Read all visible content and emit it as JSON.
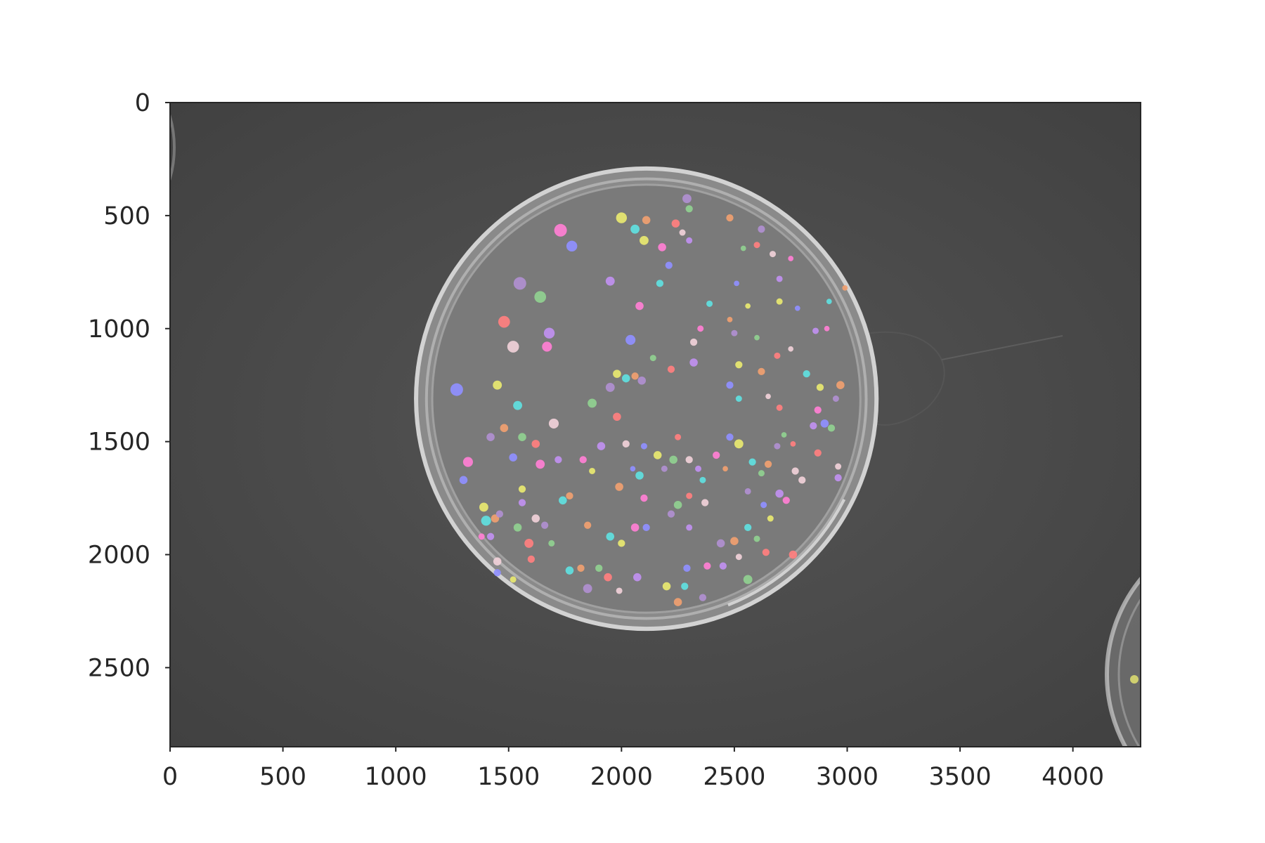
{
  "chart_data": {
    "type": "image",
    "xlim": [
      0,
      4300
    ],
    "ylim": [
      2850,
      0
    ],
    "x_ticks": [
      {
        "value": 0,
        "label": "0"
      },
      {
        "value": 500,
        "label": "500"
      },
      {
        "value": 1000,
        "label": "1000"
      },
      {
        "value": 1500,
        "label": "1500"
      },
      {
        "value": 2000,
        "label": "2000"
      },
      {
        "value": 2500,
        "label": "2500"
      },
      {
        "value": 3000,
        "label": "3000"
      },
      {
        "value": 3500,
        "label": "3500"
      },
      {
        "value": 4000,
        "label": "4000"
      }
    ],
    "y_ticks": [
      {
        "value": 0,
        "label": "0"
      },
      {
        "value": 500,
        "label": "500"
      },
      {
        "value": 1000,
        "label": "1000"
      },
      {
        "value": 1500,
        "label": "1500"
      },
      {
        "value": 2000,
        "label": "2000"
      },
      {
        "value": 2500,
        "label": "2500"
      }
    ],
    "grid": false,
    "background_color": "#4a4a4a",
    "dish": {
      "cx": 2110,
      "cy": 1310,
      "r": 1020
    },
    "colony_palette": [
      "#ff7fd4",
      "#8f8fff",
      "#e8e870",
      "#60e0e0",
      "#f0a070",
      "#b08fd0",
      "#90d090",
      "#ff7f7f",
      "#f0d0d8",
      "#c090f0"
    ],
    "colonies": [
      [
        1730,
        565,
        28
      ],
      [
        1780,
        635,
        24
      ],
      [
        2000,
        510,
        24
      ],
      [
        2060,
        560,
        20
      ],
      [
        2110,
        520,
        18
      ],
      [
        2290,
        425,
        20
      ],
      [
        2300,
        470,
        16
      ],
      [
        2240,
        535,
        18
      ],
      [
        2270,
        575,
        14
      ],
      [
        2300,
        610,
        14
      ],
      [
        2180,
        640,
        18
      ],
      [
        2210,
        720,
        16
      ],
      [
        2100,
        610,
        20
      ],
      [
        2170,
        800,
        16
      ],
      [
        2480,
        510,
        16
      ],
      [
        2620,
        560,
        16
      ],
      [
        2540,
        645,
        12
      ],
      [
        2600,
        630,
        14
      ],
      [
        2670,
        670,
        14
      ],
      [
        2700,
        780,
        14
      ],
      [
        2750,
        690,
        12
      ],
      [
        2510,
        800,
        12
      ],
      [
        2560,
        900,
        12
      ],
      [
        2390,
        890,
        14
      ],
      [
        2480,
        960,
        12
      ],
      [
        2500,
        1020,
        14
      ],
      [
        2600,
        1040,
        12
      ],
      [
        2690,
        1120,
        14
      ],
      [
        2750,
        1090,
        12
      ],
      [
        2860,
        1010,
        14
      ],
      [
        2910,
        1000,
        12
      ],
      [
        2780,
        910,
        12
      ],
      [
        2700,
        880,
        14
      ],
      [
        2920,
        880,
        12
      ],
      [
        2990,
        820,
        12
      ],
      [
        1550,
        800,
        28
      ],
      [
        1640,
        860,
        26
      ],
      [
        1480,
        970,
        26
      ],
      [
        1520,
        1080,
        26
      ],
      [
        1680,
        1020,
        24
      ],
      [
        1670,
        1080,
        22
      ],
      [
        1270,
        1270,
        28
      ],
      [
        1450,
        1250,
        20
      ],
      [
        1540,
        1340,
        20
      ],
      [
        1480,
        1440,
        18
      ],
      [
        1420,
        1480,
        18
      ],
      [
        1560,
        1480,
        18
      ],
      [
        1620,
        1510,
        18
      ],
      [
        1700,
        1420,
        22
      ],
      [
        1950,
        790,
        20
      ],
      [
        2080,
        900,
        18
      ],
      [
        2040,
        1050,
        22
      ],
      [
        1980,
        1200,
        18
      ],
      [
        2020,
        1220,
        18
      ],
      [
        2060,
        1210,
        16
      ],
      [
        2090,
        1230,
        18
      ],
      [
        2140,
        1130,
        14
      ],
      [
        2220,
        1180,
        16
      ],
      [
        2320,
        1060,
        16
      ],
      [
        2320,
        1150,
        18
      ],
      [
        2350,
        1000,
        14
      ],
      [
        2480,
        1250,
        16
      ],
      [
        2520,
        1160,
        16
      ],
      [
        2520,
        1310,
        14
      ],
      [
        2620,
        1190,
        16
      ],
      [
        1950,
        1260,
        20
      ],
      [
        1870,
        1330,
        20
      ],
      [
        1980,
        1390,
        18
      ],
      [
        2020,
        1510,
        16
      ],
      [
        1910,
        1520,
        18
      ],
      [
        1830,
        1580,
        16
      ],
      [
        2100,
        1520,
        14
      ],
      [
        2160,
        1560,
        18
      ],
      [
        2080,
        1650,
        18
      ],
      [
        1990,
        1700,
        18
      ],
      [
        2190,
        1620,
        14
      ],
      [
        2230,
        1580,
        18
      ],
      [
        2250,
        1480,
        14
      ],
      [
        2300,
        1580,
        16
      ],
      [
        2340,
        1620,
        14
      ],
      [
        2420,
        1560,
        16
      ],
      [
        2480,
        1480,
        16
      ],
      [
        2520,
        1510,
        20
      ],
      [
        2580,
        1590,
        16
      ],
      [
        2650,
        1600,
        16
      ],
      [
        2690,
        1520,
        14
      ],
      [
        2720,
        1470,
        12
      ],
      [
        2760,
        1510,
        12
      ],
      [
        2770,
        1630,
        16
      ],
      [
        2700,
        1730,
        18
      ],
      [
        2730,
        1760,
        16
      ],
      [
        2630,
        1780,
        14
      ],
      [
        2660,
        1840,
        14
      ],
      [
        2560,
        1880,
        16
      ],
      [
        2500,
        1940,
        18
      ],
      [
        2440,
        1950,
        18
      ],
      [
        2600,
        1930,
        14
      ],
      [
        2640,
        1990,
        16
      ],
      [
        2520,
        2010,
        14
      ],
      [
        2450,
        2050,
        16
      ],
      [
        2380,
        2050,
        16
      ],
      [
        2290,
        2060,
        16
      ],
      [
        2200,
        2140,
        18
      ],
      [
        2280,
        2140,
        16
      ],
      [
        2250,
        2210,
        18
      ],
      [
        2360,
        2190,
        16
      ],
      [
        2560,
        2110,
        20
      ],
      [
        2760,
        2000,
        18
      ],
      [
        2800,
        1670,
        16
      ],
      [
        2850,
        1430,
        16
      ],
      [
        2870,
        1360,
        16
      ],
      [
        2900,
        1420,
        18
      ],
      [
        2880,
        1260,
        16
      ],
      [
        2820,
        1200,
        16
      ],
      [
        2970,
        1250,
        18
      ],
      [
        2950,
        1310,
        14
      ],
      [
        2930,
        1440,
        16
      ],
      [
        2870,
        1550,
        16
      ],
      [
        2960,
        1610,
        14
      ],
      [
        2960,
        1660,
        16
      ],
      [
        1320,
        1590,
        22
      ],
      [
        1300,
        1670,
        18
      ],
      [
        1390,
        1790,
        20
      ],
      [
        1400,
        1850,
        22
      ],
      [
        1440,
        1840,
        18
      ],
      [
        1460,
        1820,
        16
      ],
      [
        1540,
        1880,
        18
      ],
      [
        1590,
        1950,
        20
      ],
      [
        1620,
        1840,
        18
      ],
      [
        1560,
        1770,
        16
      ],
      [
        1640,
        1600,
        20
      ],
      [
        1520,
        1570,
        18
      ],
      [
        1560,
        1710,
        16
      ],
      [
        1740,
        1760,
        18
      ],
      [
        1770,
        1740,
        16
      ],
      [
        1660,
        1870,
        16
      ],
      [
        1690,
        1950,
        14
      ],
      [
        1600,
        2020,
        16
      ],
      [
        1450,
        2030,
        18
      ],
      [
        1420,
        1920,
        16
      ],
      [
        1380,
        1920,
        14
      ],
      [
        1450,
        2080,
        16
      ],
      [
        1520,
        2110,
        14
      ],
      [
        1770,
        2070,
        18
      ],
      [
        1820,
        2060,
        16
      ],
      [
        1850,
        2150,
        20
      ],
      [
        1900,
        2060,
        16
      ],
      [
        1940,
        2100,
        18
      ],
      [
        1990,
        2160,
        14
      ],
      [
        2070,
        2100,
        18
      ],
      [
        2060,
        1880,
        18
      ],
      [
        2110,
        1880,
        16
      ],
      [
        2000,
        1950,
        16
      ],
      [
        1950,
        1920,
        18
      ],
      [
        1850,
        1870,
        16
      ],
      [
        2220,
        1820,
        16
      ],
      [
        2250,
        1780,
        18
      ],
      [
        2300,
        1740,
        14
      ],
      [
        2370,
        1770,
        16
      ],
      [
        2300,
        1880,
        14
      ],
      [
        2100,
        1750,
        16
      ],
      [
        2050,
        1620,
        12
      ],
      [
        1870,
        1630,
        14
      ],
      [
        2360,
        1670,
        14
      ],
      [
        2460,
        1620,
        12
      ],
      [
        2560,
        1720,
        14
      ],
      [
        2620,
        1640,
        14
      ],
      [
        2700,
        1350,
        14
      ],
      [
        2650,
        1300,
        12
      ],
      [
        1720,
        1580,
        16
      ]
    ]
  }
}
